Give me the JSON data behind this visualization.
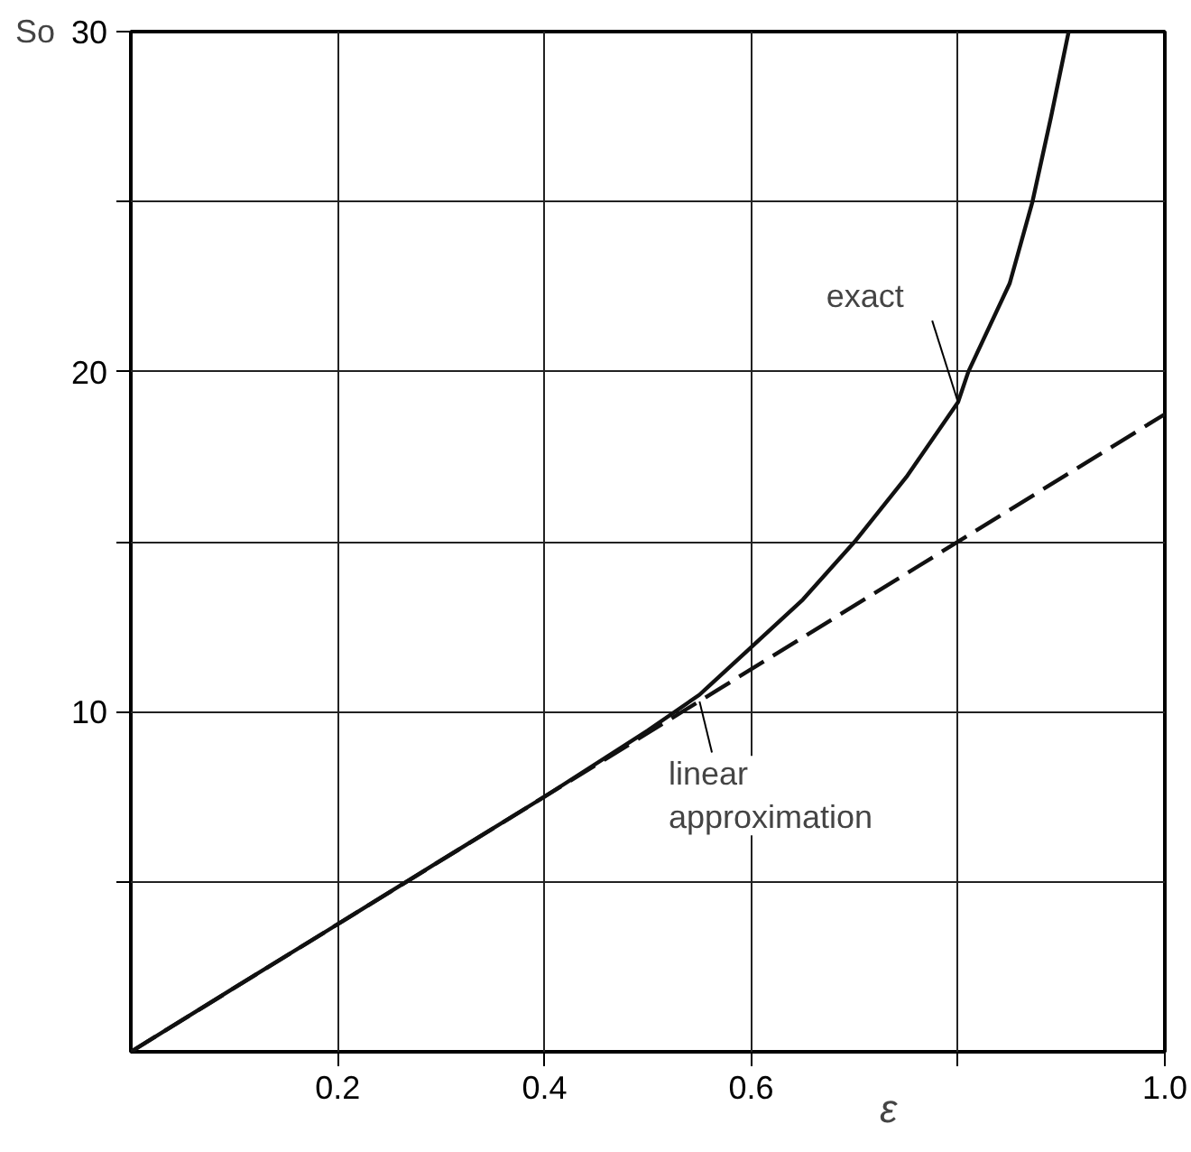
{
  "chart_data": {
    "type": "line",
    "xlabel": "ε",
    "ylabel": "So",
    "x": [
      0,
      0.1,
      0.2,
      0.3,
      0.4,
      0.5,
      0.55,
      0.6,
      0.65,
      0.7,
      0.75,
      0.8,
      0.81,
      0.85,
      0.872,
      0.89,
      0.907
    ],
    "series": [
      {
        "color": "#111111",
        "line_style": "solid",
        "values": [
          0,
          1.88,
          3.75,
          5.63,
          7.5,
          9.45,
          10.5,
          11.9,
          13.3,
          15,
          16.9,
          19.1,
          20,
          22.6,
          25,
          27.5,
          30
        ]
      },
      {
        "color": "#111111",
        "line_style": "dashed",
        "x": [
          0,
          1.0
        ],
        "values": [
          0,
          18.75
        ]
      }
    ],
    "xlim": [
      0,
      1.0
    ],
    "ylim": [
      0,
      30
    ],
    "xticks": [
      0.2,
      0.4,
      0.6,
      {
        "value": 0.8,
        "label": null
      },
      {
        "value": 1.0,
        "label": "1.0"
      }
    ],
    "yticks": [
      {
        "value": 5,
        "label": null
      },
      10,
      {
        "value": 15,
        "label": null
      },
      20,
      {
        "value": 25,
        "label": null
      },
      30
    ],
    "grid": true,
    "annotations": [
      {
        "text": "exact",
        "x": 0.8,
        "y": 19.1
      },
      {
        "text": "linear approximation",
        "x": 0.55,
        "y": 10.3
      }
    ]
  }
}
